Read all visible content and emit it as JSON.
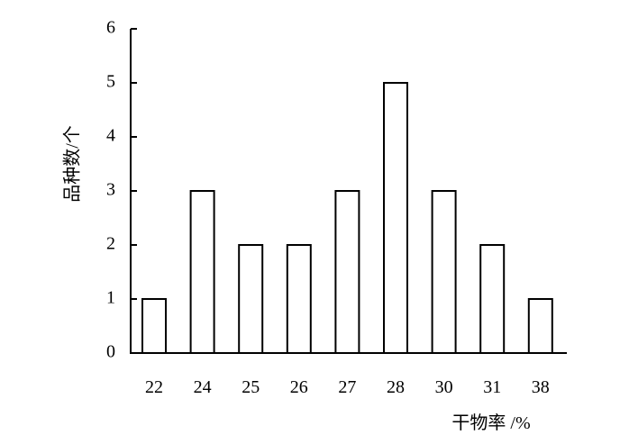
{
  "chart_data": {
    "type": "bar",
    "title": "",
    "xlabel": "干物率 /%",
    "ylabel": "品种数/个",
    "categories": [
      "22",
      "24",
      "25",
      "26",
      "27",
      "28",
      "30",
      "31",
      "38"
    ],
    "values": [
      1,
      3,
      2,
      2,
      3,
      5,
      3,
      2,
      1
    ],
    "ylim": [
      0,
      6
    ],
    "yticks": [
      "0",
      "1",
      "2",
      "3",
      "4",
      "5",
      "6"
    ],
    "grid": false,
    "legend": "none",
    "bar_fill": "#ffffff",
    "bar_stroke": "#000000"
  }
}
